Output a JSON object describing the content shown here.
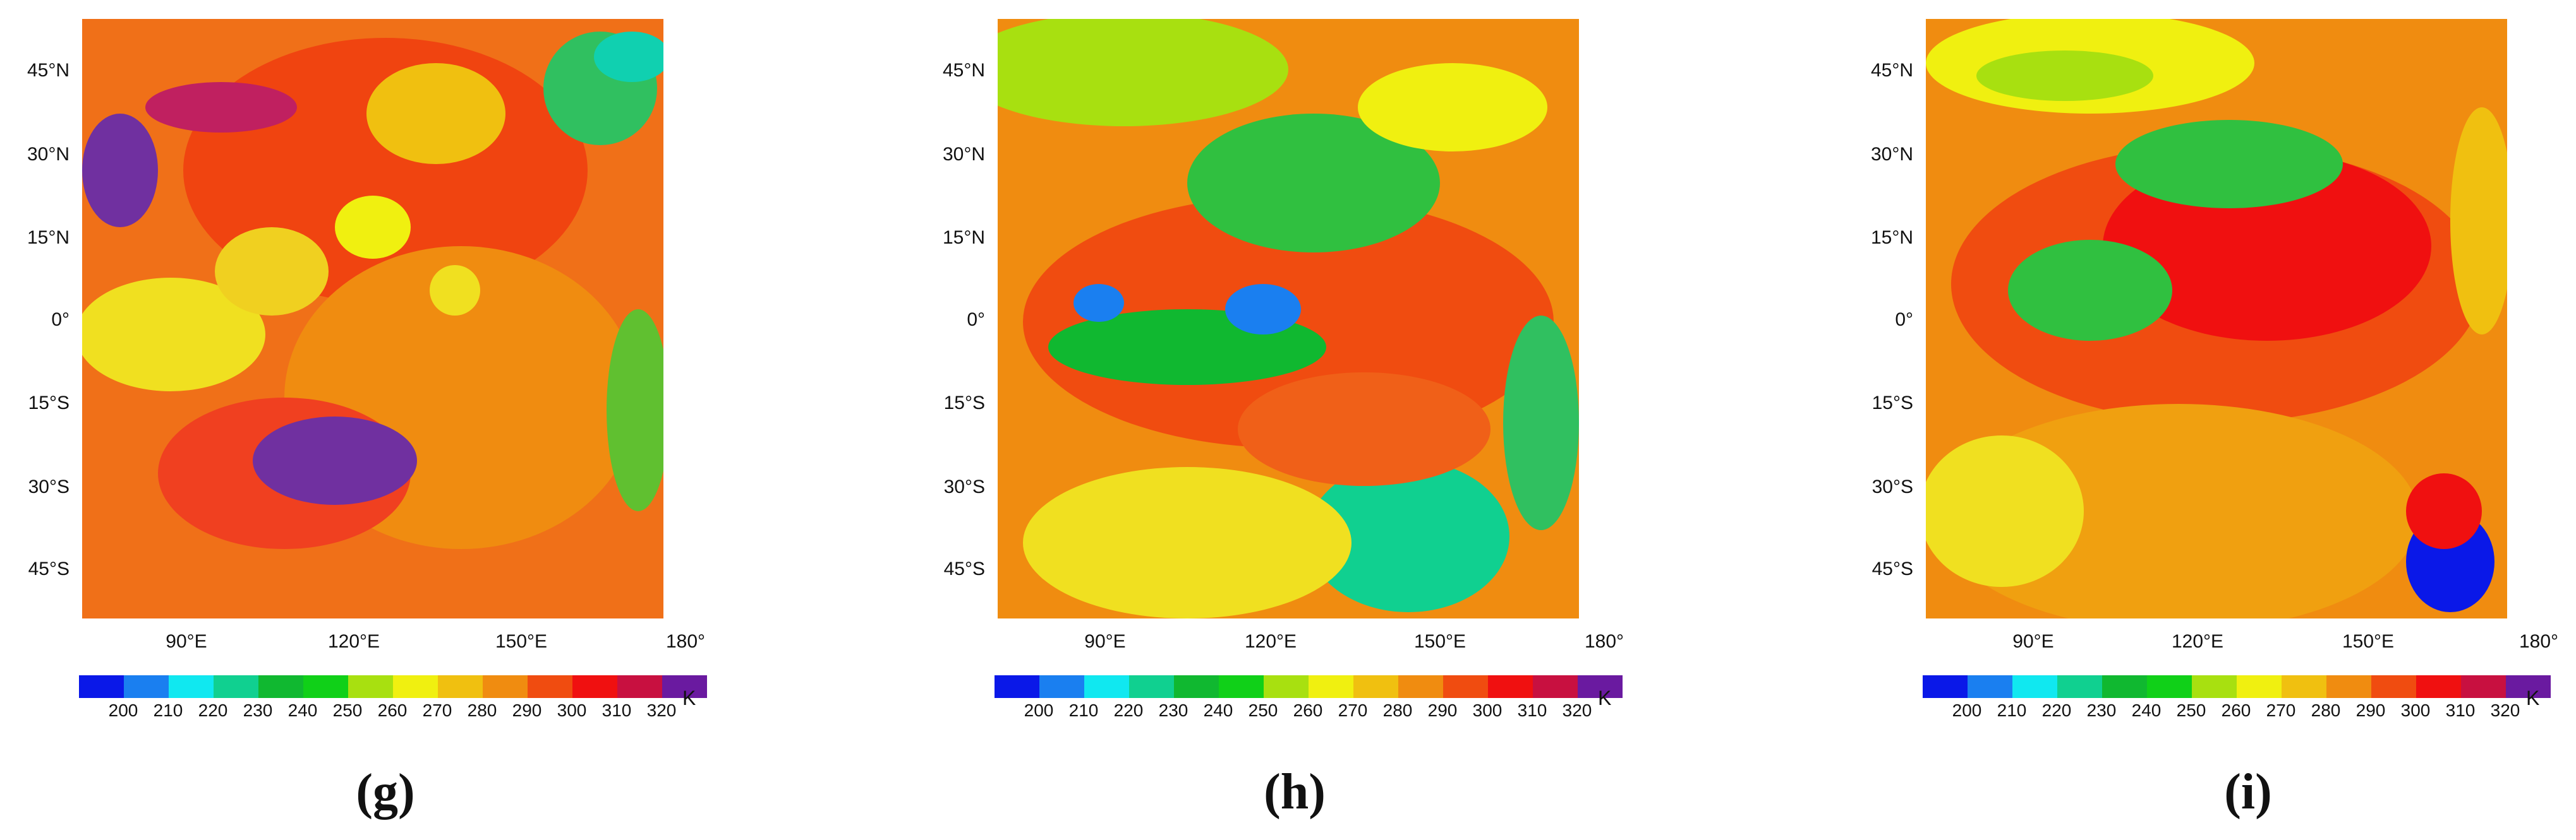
{
  "lat_labels": [
    "45°N",
    "30°N",
    "15°N",
    "0°",
    "15°S",
    "30°S",
    "45°S"
  ],
  "lon_labels": [
    "90°E",
    "120°E",
    "150°E",
    "180°"
  ],
  "colorbar": {
    "colors": [
      "#0a18e8",
      "#1a7ff0",
      "#10e8f0",
      "#10d090",
      "#10b830",
      "#10d018",
      "#a8e010",
      "#f0f010",
      "#f0c010",
      "#f08c10",
      "#f04c10",
      "#f01010",
      "#c81040",
      "#6a1aa0"
    ],
    "ticks": [
      "200",
      "210",
      "220",
      "230",
      "240",
      "250",
      "260",
      "270",
      "280",
      "290",
      "300",
      "310",
      "320"
    ],
    "unit": "K"
  },
  "panels": [
    {
      "label": "(g)"
    },
    {
      "label": "(h)"
    },
    {
      "label": "(i)"
    }
  ]
}
